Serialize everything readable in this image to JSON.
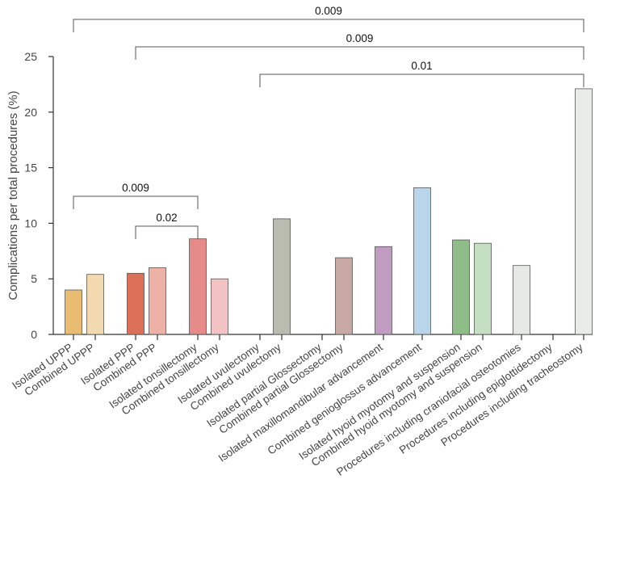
{
  "chart_data": {
    "type": "bar",
    "title": "",
    "xlabel": "",
    "ylabel": "Complications per total procedures (%)",
    "ylim": [
      0,
      25
    ],
    "yticks": [
      0,
      5,
      10,
      15,
      20,
      25
    ],
    "grid": false,
    "categories": [
      "Isolated UPPP",
      "Combined UPPP",
      "Isolated PPP",
      "Combined PPP",
      "Isolated tonsillectomy",
      "Combined tonsillectomy",
      "Isolated uvulectomy",
      "Combined uvulectomy",
      "Isolated partial Glossectomy",
      "Combined partial Glossectomy",
      "Isolated maxillomandibular advancement",
      "Combined genioglossus advancement",
      "Isolated hyoid myotomy and suspension",
      "Combined hyoid myotomy and suspension",
      "Procedures including craniofacial osteotomies",
      "Procedures including epiglottidectomy",
      "Procedures including tracheostomy"
    ],
    "values": [
      4.0,
      5.4,
      5.5,
      6.0,
      8.6,
      5.0,
      0,
      10.4,
      0,
      6.9,
      7.9,
      13.2,
      8.5,
      8.2,
      6.2,
      0,
      22.1
    ],
    "colors": [
      "#e8bd72",
      "#f2d9b0",
      "#dc6f57",
      "#eeb1a6",
      "#e68a8a",
      "#f3c3c3",
      "#ffffff",
      "#b9bcaf",
      "#ffffff",
      "#c8a8a2",
      "#c09dc0",
      "#b9d5ea",
      "#8fbd88",
      "#c5dfc3",
      "#e6e8e4",
      "#ffffff",
      "#e9ebe7"
    ],
    "comparisons": [
      {
        "from": 0,
        "to": 16,
        "label": "0.009"
      },
      {
        "from": 2,
        "to": 16,
        "label": "0.009"
      },
      {
        "from": 6,
        "to": 16,
        "label": "0.01"
      },
      {
        "from": 0,
        "to": 4,
        "label": "0.009"
      },
      {
        "from": 2,
        "to": 4,
        "label": "0.02"
      }
    ]
  }
}
